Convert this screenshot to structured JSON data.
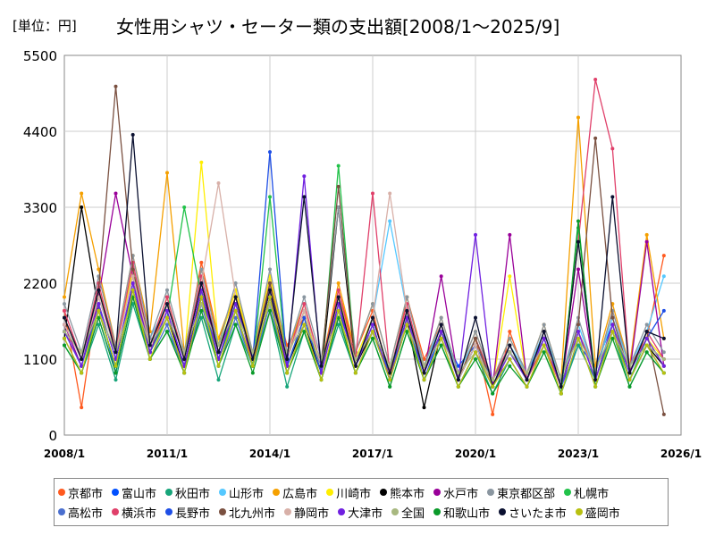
{
  "title": "女性用シャツ・セーター類の支出額[2008/1～2025/9]",
  "unit": "[単位：円]",
  "chart_data": {
    "type": "line",
    "title": "女性用シャツ・セーター類の支出額[2008/1～2025/9]",
    "ylabel": "円",
    "ylim": [
      0,
      5500
    ],
    "yticks": [
      "0",
      "1100",
      "2200",
      "3300",
      "4400",
      "5500"
    ],
    "xticks": [
      "2008/1",
      "2011/1",
      "2014/1",
      "2017/1",
      "2020/1",
      "2023/1",
      "2026/1"
    ],
    "xlim": [
      2008,
      2026
    ],
    "x": [
      2008.0,
      2008.5,
      2009.0,
      2009.5,
      2010.0,
      2010.5,
      2011.0,
      2011.5,
      2012.0,
      2012.5,
      2013.0,
      2013.5,
      2014.0,
      2014.5,
      2015.0,
      2015.5,
      2016.0,
      2016.5,
      2017.0,
      2017.5,
      2018.0,
      2018.5,
      2019.0,
      2019.5,
      2020.0,
      2020.5,
      2021.0,
      2021.5,
      2022.0,
      2022.5,
      2023.0,
      2023.5,
      2024.0,
      2024.5,
      2025.0,
      2025.5
    ],
    "legend_position": "bottom",
    "series": [
      {
        "name": "京都市",
        "color": "#ff5a1f",
        "values": [
          1800,
          400,
          2100,
          1300,
          2300,
          1200,
          1900,
          1100,
          2500,
          1400,
          2000,
          1000,
          2200,
          1300,
          1700,
          900,
          2100,
          1200,
          1800,
          800,
          2000,
          1100,
          1600,
          900,
          1400,
          300,
          1500,
          800,
          1300,
          700,
          1500,
          900,
          1800,
          1000,
          1400,
          2600
        ]
      },
      {
        "name": "富山市",
        "color": "#0050ff",
        "values": [
          1500,
          1000,
          1900,
          900,
          2200,
          1300,
          1700,
          900,
          2000,
          1100,
          1800,
          1200,
          2100,
          900,
          1600,
          1000,
          1800,
          1100,
          1500,
          900,
          1700,
          800,
          1500,
          1000,
          1300,
          800,
          1200,
          900,
          1400,
          700,
          1300,
          1000,
          1600,
          800,
          1300,
          1100
        ]
      },
      {
        "name": "秋田市",
        "color": "#17a57a",
        "values": [
          1300,
          900,
          1600,
          800,
          1900,
          1100,
          1500,
          1000,
          1700,
          800,
          1600,
          1000,
          1800,
          700,
          1500,
          800,
          1600,
          900,
          1400,
          700,
          1500,
          800,
          1300,
          700,
          1200,
          600,
          1100,
          700,
          1200,
          600,
          1300,
          800,
          1500,
          700,
          1200,
          900
        ]
      },
      {
        "name": "山形市",
        "color": "#55c8ff",
        "values": [
          1600,
          1100,
          2000,
          1200,
          2300,
          1400,
          1900,
          1100,
          2200,
          1300,
          1900,
          1200,
          2100,
          1100,
          1800,
          1000,
          2000,
          1100,
          1700,
          3100,
          1800,
          1000,
          1600,
          900,
          1400,
          800,
          1300,
          900,
          1500,
          800,
          1600,
          900,
          1700,
          1000,
          1500,
          2300
        ]
      },
      {
        "name": "広島市",
        "color": "#f5a000",
        "values": [
          2000,
          3500,
          2400,
          1300,
          2600,
          1500,
          3800,
          1200,
          2400,
          1400,
          2100,
          1100,
          2300,
          1200,
          1900,
          1000,
          2200,
          1200,
          1900,
          1000,
          2000,
          1000,
          1700,
          900,
          1500,
          800,
          1400,
          900,
          1600,
          800,
          4600,
          1000,
          1900,
          1000,
          2900,
          1400
        ]
      },
      {
        "name": "川崎市",
        "color": "#ffee00",
        "values": [
          1700,
          1100,
          2100,
          1200,
          2400,
          1300,
          2000,
          1100,
          3950,
          1300,
          2100,
          1200,
          2300,
          1100,
          1800,
          900,
          2000,
          1100,
          1700,
          900,
          1800,
          900,
          1500,
          800,
          1400,
          700,
          2300,
          800,
          1400,
          700,
          1500,
          800,
          1600,
          900,
          1400,
          1100
        ]
      },
      {
        "name": "熊本市",
        "color": "#000000",
        "values": [
          1400,
          3300,
          1800,
          1000,
          2100,
          1200,
          1700,
          1000,
          2000,
          1100,
          1800,
          1000,
          2000,
          1000,
          1600,
          900,
          3300,
          1000,
          1500,
          800,
          1700,
          400,
          1500,
          800,
          1300,
          700,
          1200,
          800,
          1400,
          700,
          1500,
          800,
          1600,
          800,
          1300,
          1000
        ]
      },
      {
        "name": "水戸市",
        "color": "#990099",
        "values": [
          1600,
          1000,
          2000,
          3500,
          2300,
          1200,
          1800,
          1000,
          2100,
          1200,
          1900,
          1100,
          2100,
          1000,
          1700,
          900,
          1900,
          1000,
          1600,
          800,
          1700,
          900,
          2300,
          800,
          1300,
          700,
          2900,
          800,
          1400,
          700,
          2400,
          800,
          1600,
          900,
          2800,
          1000
        ]
      },
      {
        "name": "東京都区部",
        "color": "#8a96a0",
        "values": [
          1900,
          1200,
          2300,
          1300,
          2600,
          1400,
          2100,
          1200,
          2400,
          1300,
          2200,
          1200,
          2400,
          1200,
          2000,
          1100,
          3300,
          1200,
          1900,
          1000,
          2000,
          1000,
          1700,
          900,
          1500,
          800,
          1400,
          900,
          1600,
          800,
          1700,
          900,
          1800,
          1000,
          1600,
          1200
        ]
      },
      {
        "name": "札幌市",
        "color": "#22c24a",
        "values": [
          1500,
          1000,
          1800,
          1000,
          2100,
          1200,
          1700,
          3300,
          2000,
          1100,
          1800,
          1000,
          3450,
          1000,
          1700,
          900,
          3900,
          1000,
          1600,
          800,
          1700,
          900,
          1500,
          800,
          1300,
          700,
          1200,
          800,
          1400,
          700,
          3000,
          800,
          1600,
          800,
          1400,
          1000
        ]
      },
      {
        "name": "高松市",
        "color": "#4a6fcf",
        "values": [
          1400,
          900,
          1700,
          900,
          2000,
          1100,
          1600,
          900,
          1900,
          1000,
          1700,
          1000,
          1900,
          900,
          1600,
          800,
          1700,
          900,
          1500,
          800,
          1600,
          800,
          1400,
          700,
          1200,
          700,
          1100,
          700,
          1300,
          600,
          1400,
          700,
          1500,
          800,
          1300,
          900
        ]
      },
      {
        "name": "横浜市",
        "color": "#e0406a",
        "values": [
          1800,
          1100,
          2200,
          1200,
          2500,
          1300,
          2000,
          1100,
          2300,
          1200,
          2000,
          1100,
          2200,
          1100,
          1900,
          1000,
          2100,
          1100,
          3500,
          900,
          1900,
          900,
          1600,
          800,
          1400,
          800,
          1300,
          800,
          1500,
          700,
          2800,
          5150,
          4150,
          900,
          1500,
          1100
        ]
      },
      {
        "name": "長野市",
        "color": "#1e4ee6",
        "values": [
          1500,
          1000,
          1900,
          1100,
          2200,
          1200,
          1800,
          1000,
          2100,
          1100,
          1900,
          1100,
          4100,
          1000,
          1700,
          900,
          1900,
          1000,
          1600,
          800,
          1700,
          900,
          1500,
          800,
          1300,
          700,
          1200,
          800,
          1400,
          700,
          1500,
          800,
          1600,
          900,
          1400,
          1800
        ]
      },
      {
        "name": "北九州市",
        "color": "#7a5040",
        "values": [
          1700,
          1100,
          2100,
          5050,
          2400,
          1300,
          1900,
          1100,
          2200,
          1200,
          2000,
          1100,
          2200,
          1100,
          1800,
          1000,
          3600,
          1000,
          1700,
          900,
          1800,
          900,
          1600,
          800,
          1400,
          700,
          1300,
          800,
          1500,
          700,
          1600,
          4300,
          1700,
          900,
          1500,
          300
        ]
      },
      {
        "name": "静岡市",
        "color": "#d8b0a8",
        "values": [
          1600,
          1100,
          2000,
          1200,
          2300,
          1300,
          1900,
          1100,
          2200,
          3650,
          2000,
          1100,
          2100,
          1100,
          1800,
          1000,
          2000,
          1000,
          1700,
          3500,
          1800,
          900,
          1500,
          800,
          1300,
          700,
          1200,
          800,
          1400,
          700,
          1500,
          800,
          1600,
          900,
          1400,
          1000
        ]
      },
      {
        "name": "大津市",
        "color": "#7020e0",
        "values": [
          1500,
          1000,
          1900,
          1100,
          2200,
          1200,
          1800,
          1000,
          2100,
          1100,
          1900,
          1100,
          2100,
          1000,
          3750,
          900,
          1900,
          1000,
          1600,
          800,
          1700,
          900,
          1500,
          800,
          2900,
          700,
          1200,
          800,
          1400,
          700,
          1500,
          800,
          1600,
          900,
          1400,
          1000
        ]
      },
      {
        "name": "全国",
        "color": "#a8b880",
        "values": [
          1500,
          1200,
          1800,
          1200,
          2000,
          1300,
          1700,
          1200,
          1900,
          1300,
          1800,
          1200,
          1900,
          1200,
          1600,
          1100,
          1700,
          1100,
          1500,
          1000,
          1600,
          1000,
          1400,
          900,
          1200,
          800,
          1200,
          900,
          1300,
          850,
          1400,
          950,
          1500,
          1000,
          1300,
          1100
        ]
      },
      {
        "name": "和歌山市",
        "color": "#0a9a2a",
        "values": [
          1300,
          900,
          1700,
          900,
          2000,
          1100,
          1500,
          900,
          1800,
          1000,
          1600,
          900,
          1800,
          900,
          1500,
          800,
          1700,
          900,
          1400,
          700,
          1500,
          800,
          1300,
          700,
          1100,
          600,
          1000,
          700,
          1200,
          600,
          3100,
          700,
          1400,
          700,
          1200,
          900
        ]
      },
      {
        "name": "さいたま市",
        "color": "#0a1030",
        "values": [
          1700,
          1100,
          2100,
          1200,
          4350,
          1300,
          1900,
          1100,
          2200,
          1200,
          2000,
          1100,
          2100,
          1100,
          3450,
          1000,
          2000,
          1000,
          1700,
          900,
          1800,
          900,
          1600,
          800,
          1700,
          700,
          1300,
          800,
          1500,
          700,
          2800,
          800,
          3450,
          900,
          1500,
          1400
        ]
      },
      {
        "name": "盛岡市",
        "color": "#b8c010",
        "values": [
          1400,
          900,
          1800,
          1000,
          2100,
          1100,
          1700,
          900,
          2000,
          1000,
          1800,
          1000,
          2000,
          900,
          1600,
          800,
          1800,
          900,
          1500,
          800,
          1600,
          800,
          1400,
          700,
          1200,
          700,
          1100,
          700,
          1300,
          600,
          1400,
          700,
          1500,
          800,
          1300,
          900
        ]
      }
    ]
  }
}
